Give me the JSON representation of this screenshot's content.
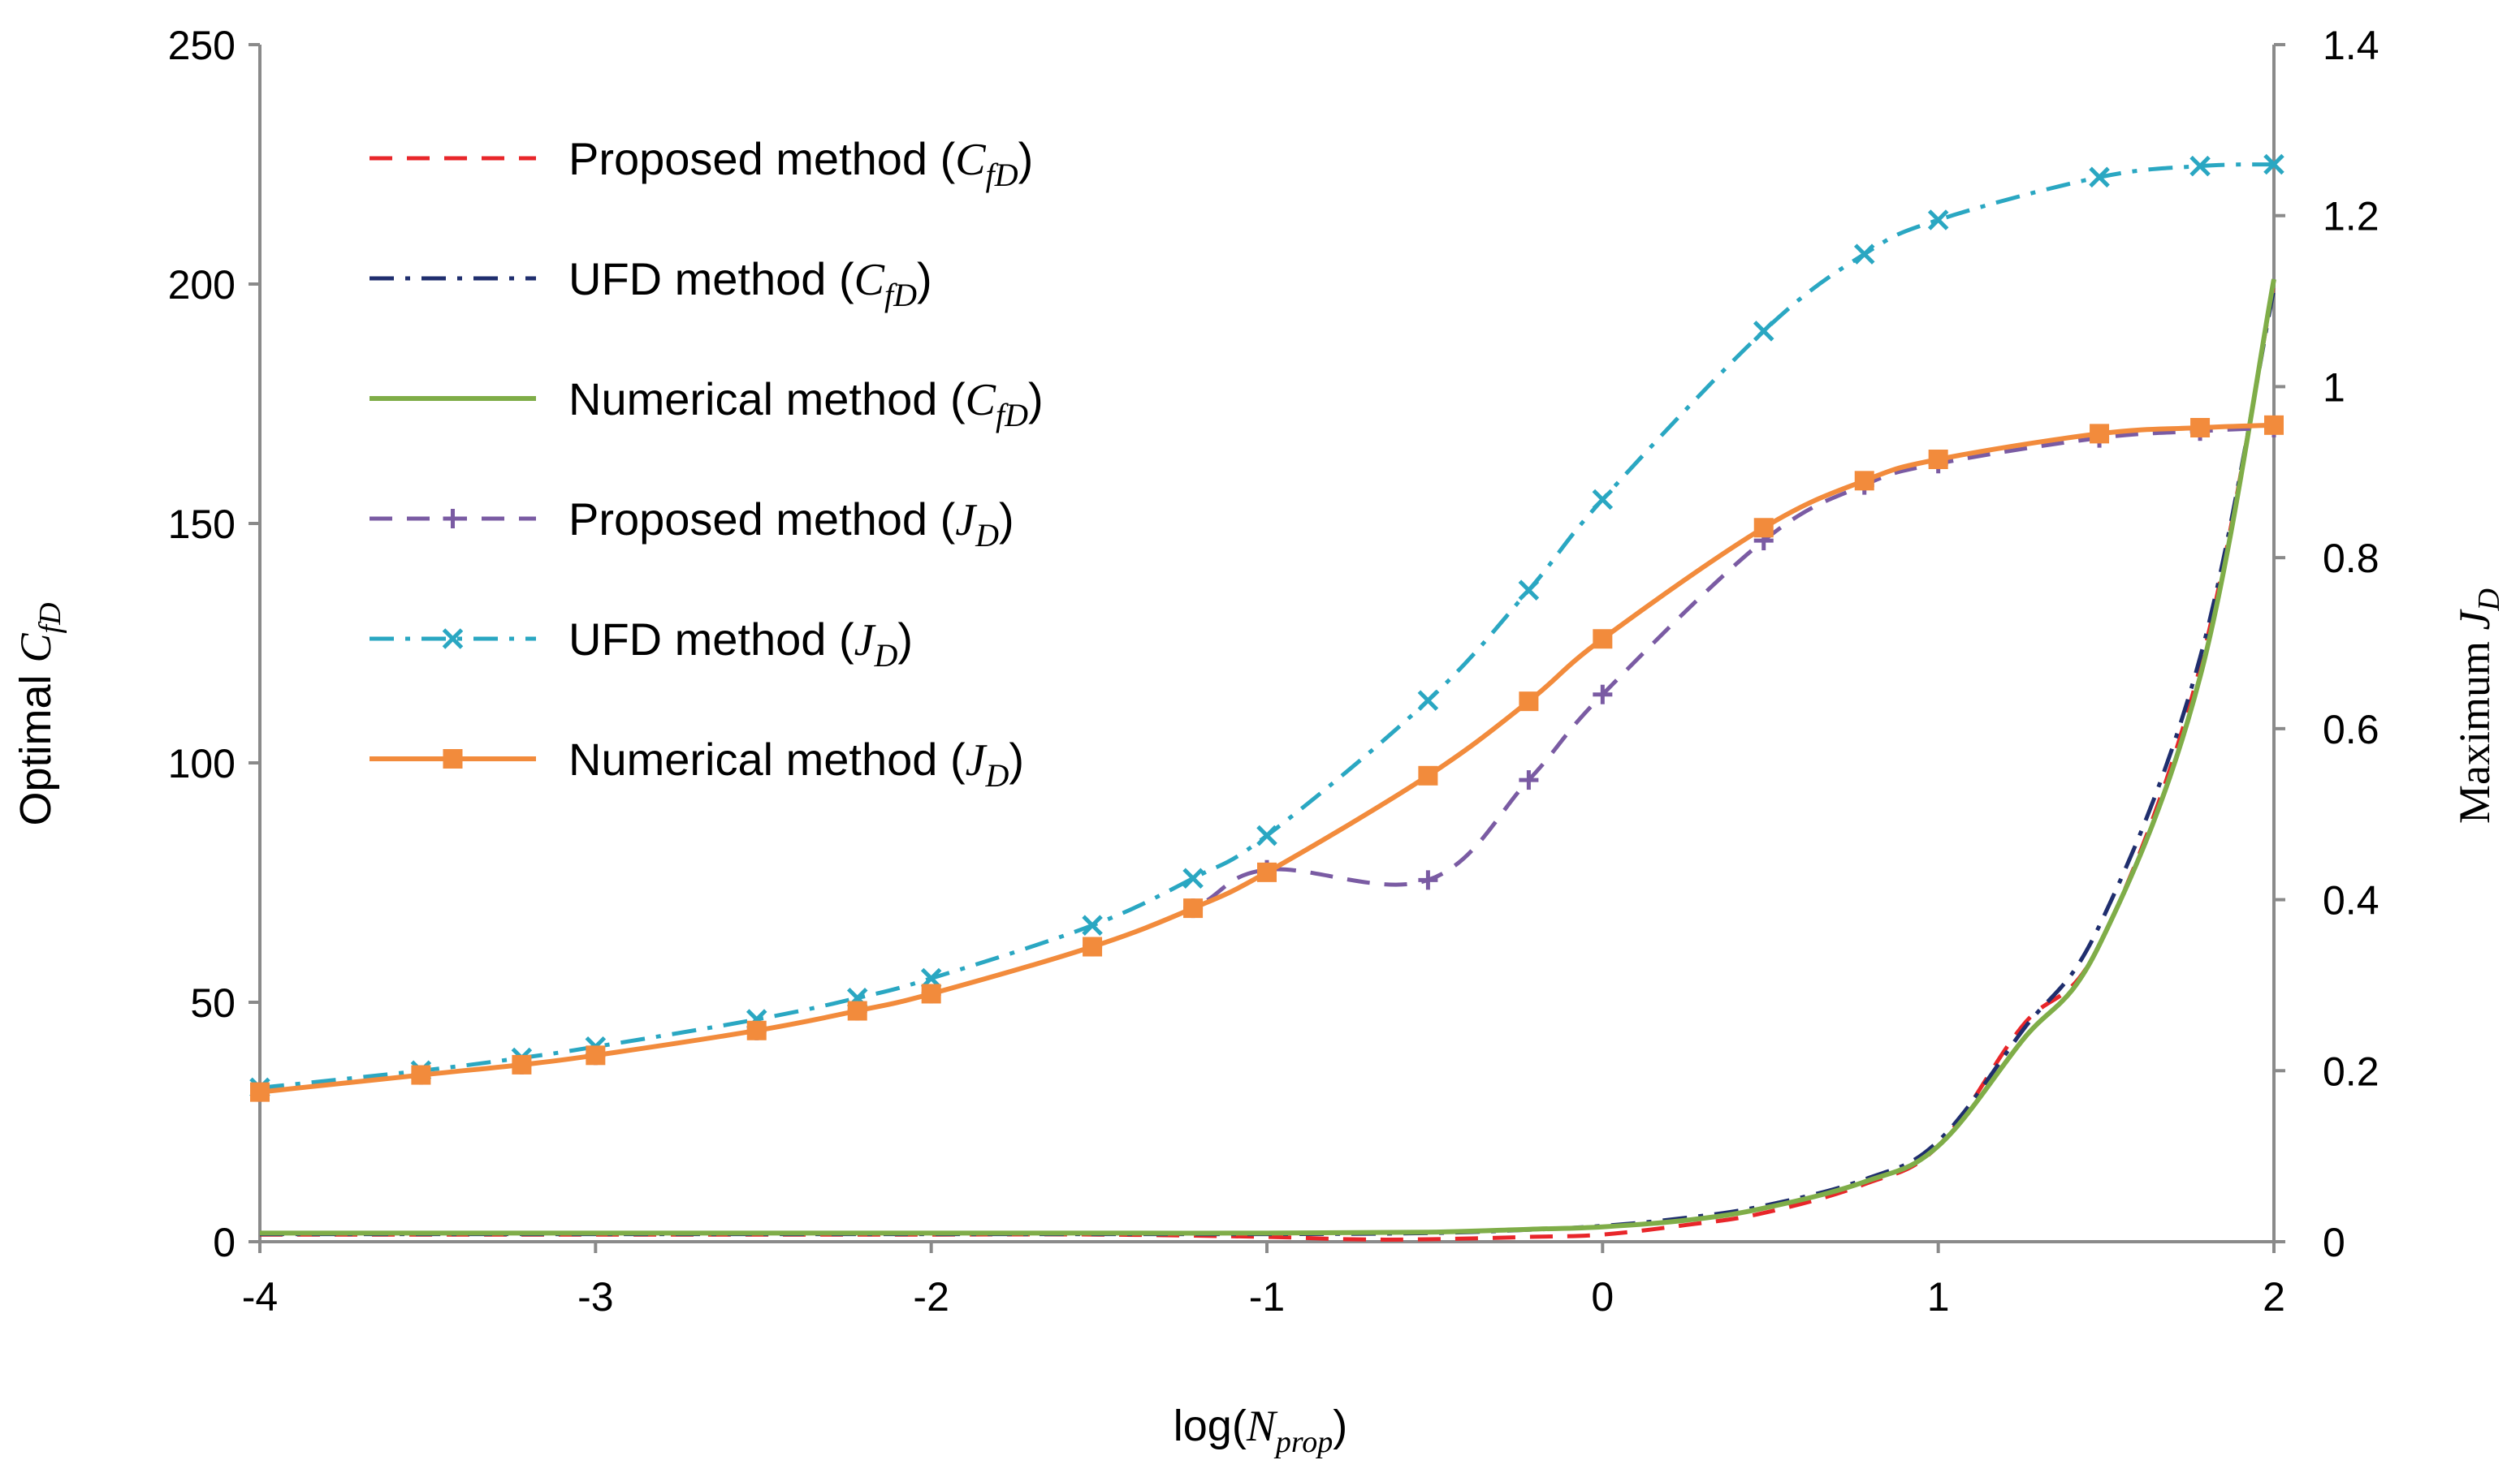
{
  "chart_data": {
    "type": "line",
    "title": "",
    "xlabel": "log(N_prop)",
    "xlabel_main": "log(",
    "xlabel_var": "N",
    "xlabel_sub": "prop",
    "xlabel_close": ")",
    "ylabel_left": "Optimal C_fD",
    "ylabel_left_main": "Optimal ",
    "ylabel_left_var": "C",
    "ylabel_left_sub": "fD",
    "ylabel_right": "Maximum J_D",
    "ylabel_right_main": "Maximum ",
    "ylabel_right_var": "J",
    "ylabel_right_sub": "D",
    "xlim": [
      -4,
      2
    ],
    "ylim_left": [
      0,
      250
    ],
    "ylim_right": [
      0,
      1.4
    ],
    "x_ticks": [
      "-4",
      "-3",
      "-2",
      "-1",
      "0",
      "1",
      "2"
    ],
    "y_left_ticks": [
      "0",
      "50",
      "100",
      "150",
      "200",
      "250"
    ],
    "y_right_ticks": [
      "0",
      "0.2",
      "0.4",
      "0.6",
      "0.8",
      "1",
      "1.2",
      "1.4"
    ],
    "legend_position": "top-left",
    "series": [
      {
        "name": "Proposed method (C_fD)",
        "legend_main": "Proposed method (",
        "legend_var": "C",
        "legend_sub": "fD",
        "legend_close": ")",
        "axis": "left",
        "color": "#e8262a",
        "style": "dashed",
        "marker": "none",
        "x": [
          -4,
          -3.5,
          -3,
          -2.5,
          -2,
          -1.5,
          -1,
          -0.75,
          -0.52,
          -0.22,
          0,
          0.25,
          0.48,
          0.78,
          1,
          1.25,
          1.48,
          1.78,
          2
        ],
        "values": [
          1.5,
          1.5,
          1.5,
          1.5,
          1.5,
          1.5,
          1.0,
          0.5,
          0.5,
          1.0,
          1.5,
          3.5,
          6,
          12,
          20,
          45,
          62,
          120,
          200
        ]
      },
      {
        "name": "UFD method (C_fD)",
        "legend_main": "UFD method (",
        "legend_var": "C",
        "legend_sub": "fD",
        "legend_close": ")",
        "axis": "left",
        "color": "#1f2e6e",
        "style": "dashdot",
        "marker": "none",
        "x": [
          -4,
          -3.5,
          -3,
          -2.5,
          -2,
          -1.5,
          -1,
          -0.52,
          -0.22,
          0,
          0.25,
          0.48,
          0.78,
          1,
          1.25,
          1.48,
          1.78,
          2
        ],
        "values": [
          1.6,
          1.6,
          1.6,
          1.6,
          1.6,
          1.6,
          1.6,
          1.8,
          2.5,
          3.3,
          5,
          7.5,
          13,
          21,
          44,
          66,
          122,
          199
        ]
      },
      {
        "name": "Numerical method (C_fD)",
        "legend_main": "Numerical method (",
        "legend_var": "C",
        "legend_sub": "fD",
        "legend_close": ")",
        "axis": "left",
        "color": "#7fad48",
        "style": "solid",
        "marker": "none",
        "x": [
          -4,
          -3.5,
          -3,
          -2.5,
          -2,
          -1.5,
          -1,
          -0.52,
          -0.22,
          0,
          0.25,
          0.48,
          0.78,
          1,
          1.25,
          1.48,
          1.78,
          2
        ],
        "values": [
          1.8,
          1.8,
          1.8,
          1.8,
          1.8,
          1.8,
          1.8,
          2.0,
          2.6,
          3.1,
          4.5,
          7,
          12.5,
          20,
          42,
          62,
          118,
          201
        ]
      },
      {
        "name": "Proposed method (J_D)",
        "legend_main": "Proposed method (",
        "legend_var": "J",
        "legend_sub": "D",
        "legend_close": ")",
        "axis": "right",
        "color": "#7a5ba3",
        "style": "dashed",
        "marker": "plus",
        "x": [
          -4,
          -3.52,
          -3.22,
          -3,
          -2.52,
          -2.22,
          -2,
          -1.52,
          -1.22,
          -1,
          -0.52,
          -0.22,
          0,
          0.48,
          0.78,
          1,
          1.48,
          1.78,
          2
        ],
        "values": [
          0.175,
          0.195,
          0.207,
          0.218,
          0.247,
          0.27,
          0.29,
          0.345,
          0.39,
          0.435,
          0.423,
          0.54,
          0.64,
          0.82,
          0.885,
          0.91,
          0.94,
          0.948,
          0.952
        ]
      },
      {
        "name": "UFD method (J_D)",
        "legend_main": "UFD method (",
        "legend_var": "J",
        "legend_sub": "D",
        "legend_close": ")",
        "axis": "right",
        "color": "#2aa7c2",
        "style": "dashdot",
        "marker": "x",
        "x": [
          -4,
          -3.52,
          -3.22,
          -3,
          -2.52,
          -2.22,
          -2,
          -1.52,
          -1.22,
          -1,
          -0.52,
          -0.22,
          0,
          0.48,
          0.78,
          1,
          1.48,
          1.78,
          2
        ],
        "values": [
          0.18,
          0.2,
          0.215,
          0.228,
          0.26,
          0.285,
          0.308,
          0.37,
          0.425,
          0.475,
          0.633,
          0.762,
          0.868,
          1.065,
          1.155,
          1.195,
          1.245,
          1.258,
          1.26
        ]
      },
      {
        "name": "Numerical method (J_D)",
        "legend_main": "Numerical method (",
        "legend_var": "J",
        "legend_sub": "D",
        "legend_close": ")",
        "axis": "right",
        "color": "#f28b3c",
        "style": "solid",
        "marker": "square",
        "x": [
          -4,
          -3.52,
          -3.22,
          -3,
          -2.52,
          -2.22,
          -2,
          -1.52,
          -1.22,
          -1,
          -0.52,
          -0.22,
          0,
          0.48,
          0.78,
          1,
          1.48,
          1.78,
          2
        ],
        "values": [
          0.175,
          0.195,
          0.207,
          0.218,
          0.247,
          0.27,
          0.29,
          0.345,
          0.39,
          0.432,
          0.545,
          0.632,
          0.705,
          0.835,
          0.89,
          0.915,
          0.945,
          0.952,
          0.955
        ]
      }
    ]
  }
}
